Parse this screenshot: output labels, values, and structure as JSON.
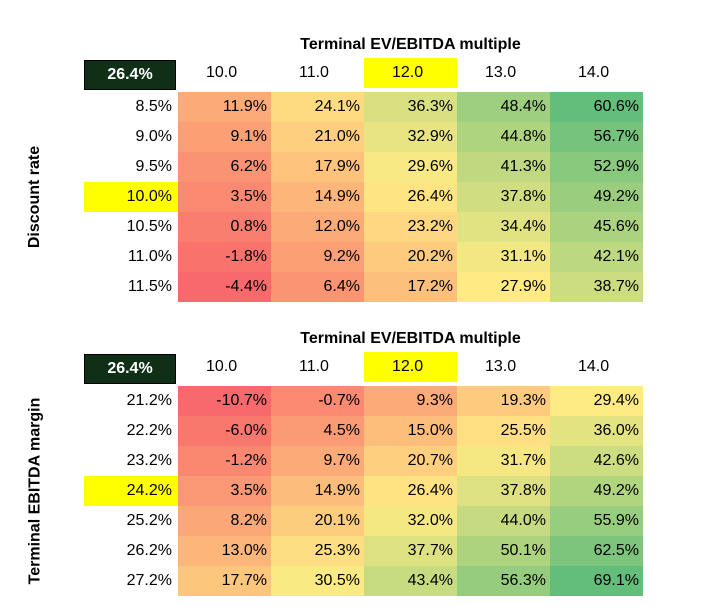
{
  "tables": [
    {
      "title": "Terminal EV/EBITDA multiple",
      "corner_value": "26.4%",
      "row_axis_label": "Discount rate",
      "columns": [
        "10.0",
        "11.0",
        "12.0",
        "13.0",
        "14.0"
      ],
      "highlight_column": 2,
      "highlight_row": 3,
      "rows": [
        {
          "label": "8.5%",
          "values": [
            "11.9%",
            "24.1%",
            "36.3%",
            "48.4%",
            "60.6%"
          ]
        },
        {
          "label": "9.0%",
          "values": [
            "9.1%",
            "21.0%",
            "32.9%",
            "44.8%",
            "56.7%"
          ]
        },
        {
          "label": "9.5%",
          "values": [
            "6.2%",
            "17.9%",
            "29.6%",
            "41.3%",
            "52.9%"
          ]
        },
        {
          "label": "10.0%",
          "values": [
            "3.5%",
            "14.9%",
            "26.4%",
            "37.8%",
            "49.2%"
          ]
        },
        {
          "label": "10.5%",
          "values": [
            "0.8%",
            "12.0%",
            "23.2%",
            "34.4%",
            "45.6%"
          ]
        },
        {
          "label": "11.0%",
          "values": [
            "-1.8%",
            "9.2%",
            "20.2%",
            "31.1%",
            "42.1%"
          ]
        },
        {
          "label": "11.5%",
          "values": [
            "-4.4%",
            "6.4%",
            "17.2%",
            "27.9%",
            "38.7%"
          ]
        }
      ]
    },
    {
      "title": "Terminal EV/EBITDA multiple",
      "corner_value": "26.4%",
      "row_axis_label": "Terminal EBITDA margin",
      "columns": [
        "10.0",
        "11.0",
        "12.0",
        "13.0",
        "14.0"
      ],
      "highlight_column": 2,
      "highlight_row": 3,
      "rows": [
        {
          "label": "21.2%",
          "values": [
            "-10.7%",
            "-0.7%",
            "9.3%",
            "19.3%",
            "29.4%"
          ]
        },
        {
          "label": "22.2%",
          "values": [
            "-6.0%",
            "4.5%",
            "15.0%",
            "25.5%",
            "36.0%"
          ]
        },
        {
          "label": "23.2%",
          "values": [
            "-1.2%",
            "9.7%",
            "20.7%",
            "31.7%",
            "42.6%"
          ]
        },
        {
          "label": "24.2%",
          "values": [
            "3.5%",
            "14.9%",
            "26.4%",
            "37.8%",
            "49.2%"
          ]
        },
        {
          "label": "25.2%",
          "values": [
            "8.2%",
            "20.1%",
            "32.0%",
            "44.0%",
            "55.9%"
          ]
        },
        {
          "label": "26.2%",
          "values": [
            "13.0%",
            "25.3%",
            "37.7%",
            "50.1%",
            "62.5%"
          ]
        },
        {
          "label": "27.2%",
          "values": [
            "17.7%",
            "30.5%",
            "43.4%",
            "56.3%",
            "69.1%"
          ]
        }
      ]
    }
  ],
  "colors": {
    "highlight": "#ffff00",
    "corner_bg": "#0f2f16",
    "scale_low": "#f8696b",
    "scale_mid": "#ffeb84",
    "scale_high": "#63be7b"
  }
}
